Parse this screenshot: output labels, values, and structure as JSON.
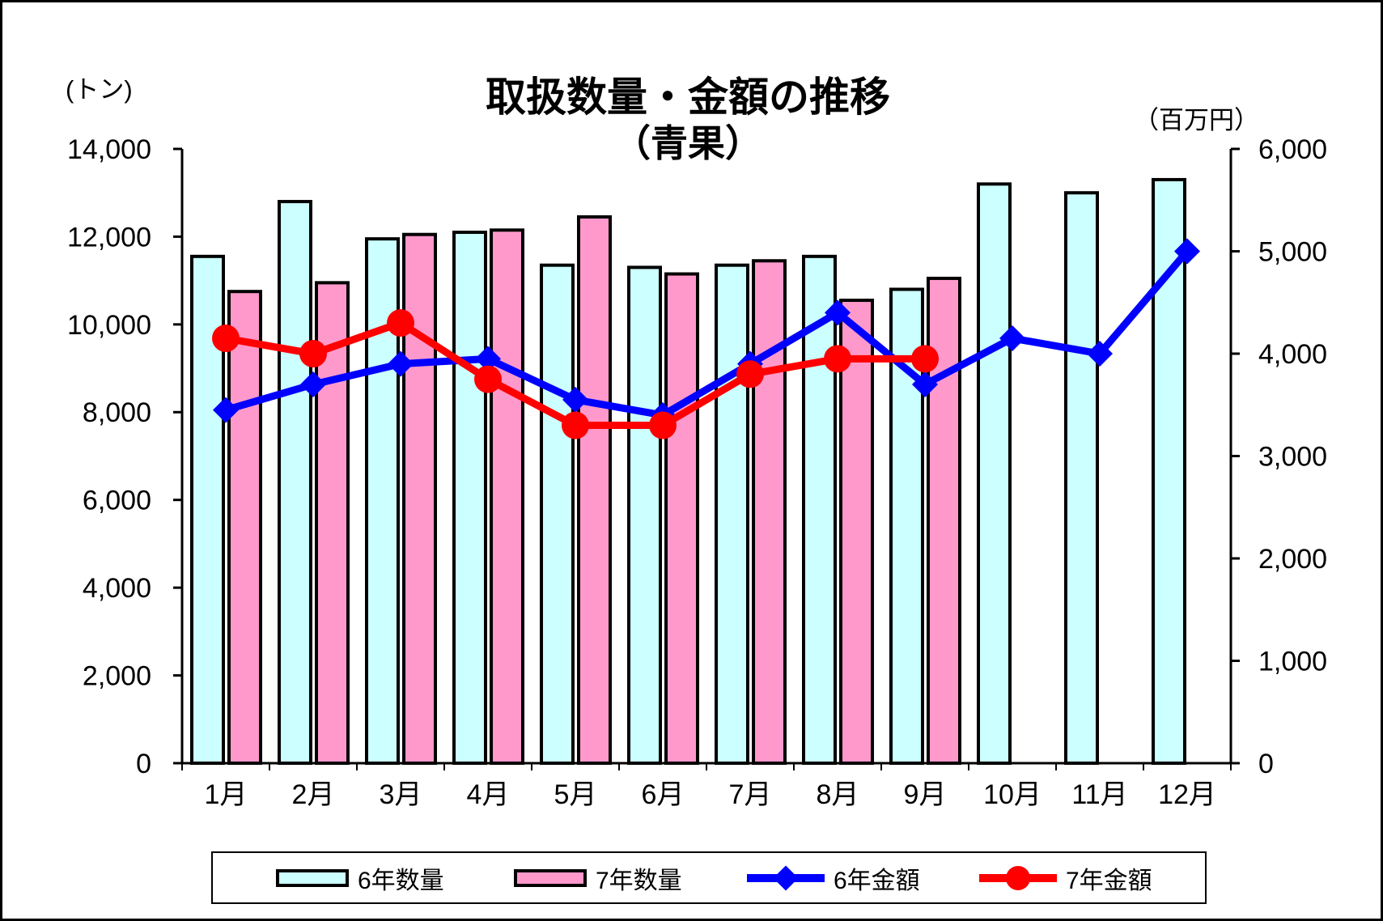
{
  "title": {
    "line1": "取扱数量・金額の推移",
    "line2": "（青果）"
  },
  "left_axis": {
    "unit_label": "(トン)",
    "min": 0,
    "max": 14000,
    "step": 2000
  },
  "right_axis": {
    "unit_label": "（百万円）",
    "min": 0,
    "max": 6000,
    "step": 1000
  },
  "legend": {
    "items": [
      {
        "label": "6年数量",
        "symbol": "bar",
        "color": "#CCFFFF"
      },
      {
        "label": "7年数量",
        "symbol": "bar",
        "color": "#FF99CC"
      },
      {
        "label": "6年金額",
        "symbol": "line-diamond",
        "color": "#0000FF"
      },
      {
        "label": "7年金額",
        "symbol": "line-circle",
        "color": "#FF0000"
      }
    ]
  },
  "chart_data": {
    "type": "combo-bar-line",
    "title": "取扱数量・金額の推移（青果）",
    "categories": [
      "1月",
      "2月",
      "3月",
      "4月",
      "5月",
      "6月",
      "7月",
      "8月",
      "9月",
      "10月",
      "11月",
      "12月"
    ],
    "left_axis": {
      "label": "(トン)",
      "min": 0,
      "max": 14000,
      "step": 2000
    },
    "right_axis": {
      "label": "（百万円）",
      "min": 0,
      "max": 6000,
      "step": 1000
    },
    "grid": false,
    "legend_position": "bottom",
    "series": [
      {
        "name": "6年数量",
        "type": "bar",
        "axis": "left",
        "color": "#CCFFFF",
        "values": [
          11550,
          12800,
          11950,
          12100,
          11350,
          11300,
          11350,
          11550,
          10800,
          13200,
          13000,
          13300
        ]
      },
      {
        "name": "7年数量",
        "type": "bar",
        "axis": "left",
        "color": "#FF99CC",
        "values": [
          10750,
          10950,
          12050,
          12150,
          12450,
          11150,
          11450,
          10550,
          11050,
          null,
          null,
          null
        ]
      },
      {
        "name": "6年金額",
        "type": "line",
        "axis": "right",
        "color": "#0000FF",
        "marker": "diamond",
        "values": [
          3450,
          3700,
          3900,
          3950,
          3550,
          3400,
          3900,
          4400,
          3700,
          4150,
          4000,
          5000
        ]
      },
      {
        "name": "7年金額",
        "type": "line",
        "axis": "right",
        "color": "#FF0000",
        "marker": "circle",
        "values": [
          4150,
          4000,
          4300,
          3750,
          3300,
          3300,
          3800,
          3950,
          3950,
          null,
          null,
          null
        ]
      }
    ]
  }
}
